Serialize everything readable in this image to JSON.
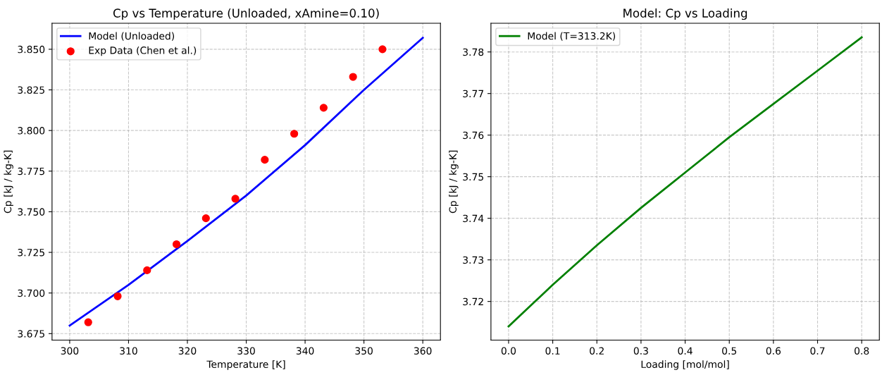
{
  "chart_data": [
    {
      "type": "line",
      "title": "Cp vs Temperature (Unloaded, xAmine=0.10)",
      "xlabel": "Temperature [K]",
      "ylabel": "Cp [kJ / kg-K]",
      "series": [
        {
          "name": "Model (Unloaded)",
          "color": "#0000ff",
          "x": [
            300,
            310,
            320,
            330,
            340,
            350,
            360
          ],
          "values": [
            3.68,
            3.705,
            3.732,
            3.76,
            3.791,
            3.825,
            3.857
          ],
          "marker": "none",
          "line_style": "solid"
        },
        {
          "name": "Exp Data (Chen et al.)",
          "type": "scatter",
          "color": "#ff0000",
          "x": [
            303.15,
            308.15,
            313.15,
            318.15,
            323.15,
            328.15,
            333.15,
            338.15,
            343.15,
            348.15,
            353.15
          ],
          "values": [
            3.682,
            3.698,
            3.714,
            3.73,
            3.746,
            3.758,
            3.782,
            3.798,
            3.814,
            3.833,
            3.85
          ],
          "marker": "circle"
        }
      ],
      "xlim": [
        297,
        363
      ],
      "ylim": [
        3.671,
        3.866
      ],
      "xticks": [
        300,
        310,
        320,
        330,
        340,
        350,
        360
      ],
      "yticks": [
        {
          "value": 3.675,
          "label": "3.675"
        },
        {
          "value": 3.7,
          "label": "3.700"
        },
        {
          "value": 3.725,
          "label": "3.725"
        },
        {
          "value": 3.75,
          "label": "3.750"
        },
        {
          "value": 3.775,
          "label": "3.775"
        },
        {
          "value": 3.8,
          "label": "3.800"
        },
        {
          "value": 3.825,
          "label": "3.825"
        },
        {
          "value": 3.85,
          "label": "3.850"
        }
      ],
      "grid": true,
      "legend": "top left"
    },
    {
      "type": "line",
      "title": "Model: Cp vs Loading",
      "xlabel": "Loading [mol/mol]",
      "ylabel": "Cp [kJ / kg-K]",
      "series": [
        {
          "name": "Model (T=313.2K)",
          "color": "#008000",
          "x": [
            0,
            0.1,
            0.2,
            0.3,
            0.4,
            0.5,
            0.6,
            0.7,
            0.8
          ],
          "values": [
            3.714,
            3.724,
            3.7335,
            3.7425,
            3.751,
            3.7595,
            3.7675,
            3.7755,
            3.7835
          ],
          "marker": "none",
          "line_style": "solid"
        }
      ],
      "xlim": [
        -0.04,
        0.84
      ],
      "ylim": [
        3.7107,
        3.7869
      ],
      "xticks": [
        {
          "value": 0,
          "label": "0.0"
        },
        0.1,
        0.2,
        0.3,
        0.4,
        0.5,
        0.6,
        0.7,
        0.8
      ],
      "yticks": [
        3.72,
        3.73,
        3.74,
        3.75,
        3.76,
        3.77,
        3.78
      ],
      "grid": true,
      "legend": "top left"
    }
  ]
}
